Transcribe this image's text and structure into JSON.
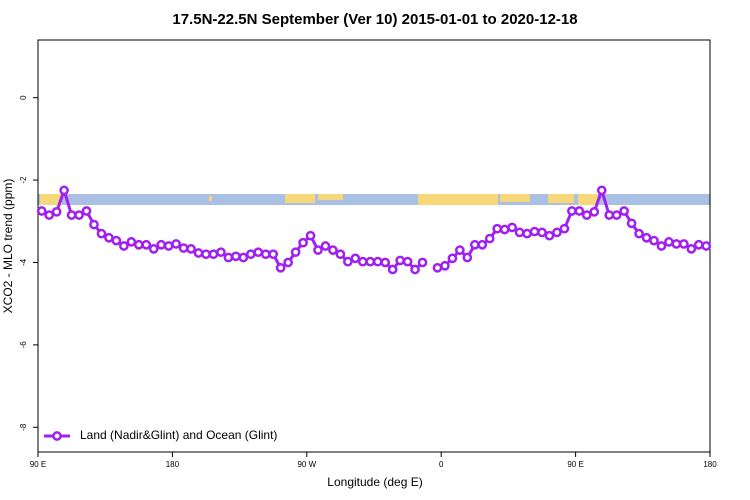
{
  "chart_data": {
    "type": "line",
    "title": "17.5N-22.5N September (Ver 10)   2015-01-01 to 2020-12-18",
    "x_label": "Longitude (deg E)",
    "y_label": "XCO2 - MLO trend (ppm)",
    "legend": "bottom-left",
    "xlim": [
      90,
      540
    ],
    "ylim": [
      -8.6,
      1.4
    ],
    "xticks": [
      {
        "value": 90,
        "label": "90 E"
      },
      180,
      {
        "value": 270,
        "label": "90 W"
      },
      {
        "value": 360,
        "label": "0"
      },
      {
        "value": 450,
        "label": "90 E"
      },
      {
        "value": 540,
        "label": "180"
      }
    ],
    "yticks": [
      0,
      -2,
      -4,
      -6,
      -8
    ],
    "x": [
      92.5,
      97.5,
      102.5,
      107.5,
      112.5,
      117.5,
      122.5,
      127.5,
      132.5,
      137.5,
      142.5,
      147.5,
      152.5,
      157.5,
      162.5,
      167.5,
      172.5,
      177.5,
      182.5,
      187.5,
      192.5,
      197.5,
      202.5,
      207.5,
      212.5,
      217.5,
      222.5,
      227.5,
      232.5,
      237.5,
      242.5,
      247.5,
      252.5,
      257.5,
      262.5,
      267.5,
      272.5,
      277.5,
      282.5,
      287.5,
      292.5,
      297.5,
      302.5,
      307.5,
      312.5,
      317.5,
      322.5,
      327.5,
      332.5,
      337.5,
      342.5,
      347.5,
      352.5,
      357.5,
      362.5,
      367.5,
      372.5,
      377.5,
      382.5,
      387.5,
      392.5,
      397.5,
      402.5,
      407.5,
      412.5,
      417.5,
      422.5,
      427.5,
      432.5,
      437.5,
      442.5,
      447.5,
      452.5,
      457.5,
      462.5,
      467.5,
      472.5,
      477.5,
      482.5,
      487.5,
      492.5,
      497.5,
      502.5,
      507.5,
      512.5,
      517.5,
      522.5,
      527.5,
      532.5,
      537.5
    ],
    "series": [
      {
        "name": "Land (Nadir&Glint) and Ocean (Glint)",
        "color": "#a020f0",
        "values": [
          -2.75,
          -2.85,
          -2.77,
          -2.25,
          -2.85,
          -2.85,
          -2.75,
          -3.08,
          -3.3,
          -3.4,
          -3.47,
          -3.6,
          -3.5,
          -3.57,
          -3.57,
          -3.67,
          -3.57,
          -3.6,
          -3.55,
          -3.65,
          -3.67,
          -3.77,
          -3.8,
          -3.8,
          -3.75,
          -3.88,
          -3.85,
          -3.88,
          -3.8,
          -3.75,
          -3.8,
          -3.8,
          -4.13,
          -4.0,
          -3.75,
          -3.52,
          -3.35,
          -3.7,
          -3.6,
          -3.7,
          -3.8,
          -3.98,
          -3.9,
          -3.98,
          -3.98,
          -3.98,
          -4.0,
          -4.17,
          -3.95,
          -3.98,
          -4.17,
          -4.0,
          null,
          -4.13,
          -4.08,
          -3.9,
          -3.7,
          -3.88,
          -3.57,
          -3.57,
          -3.42,
          -3.18,
          -3.2,
          -3.15,
          -3.27,
          -3.3,
          -3.25,
          -3.27,
          -3.35,
          -3.27,
          -3.18,
          -2.75,
          -2.75,
          -2.85,
          -2.77,
          -2.25,
          -2.85,
          -2.85,
          -2.75,
          -3.05,
          -3.3,
          -3.4,
          -3.47,
          -3.6,
          -3.5,
          -3.55,
          -3.55,
          -3.67,
          -3.57,
          -3.6
        ]
      }
    ]
  }
}
